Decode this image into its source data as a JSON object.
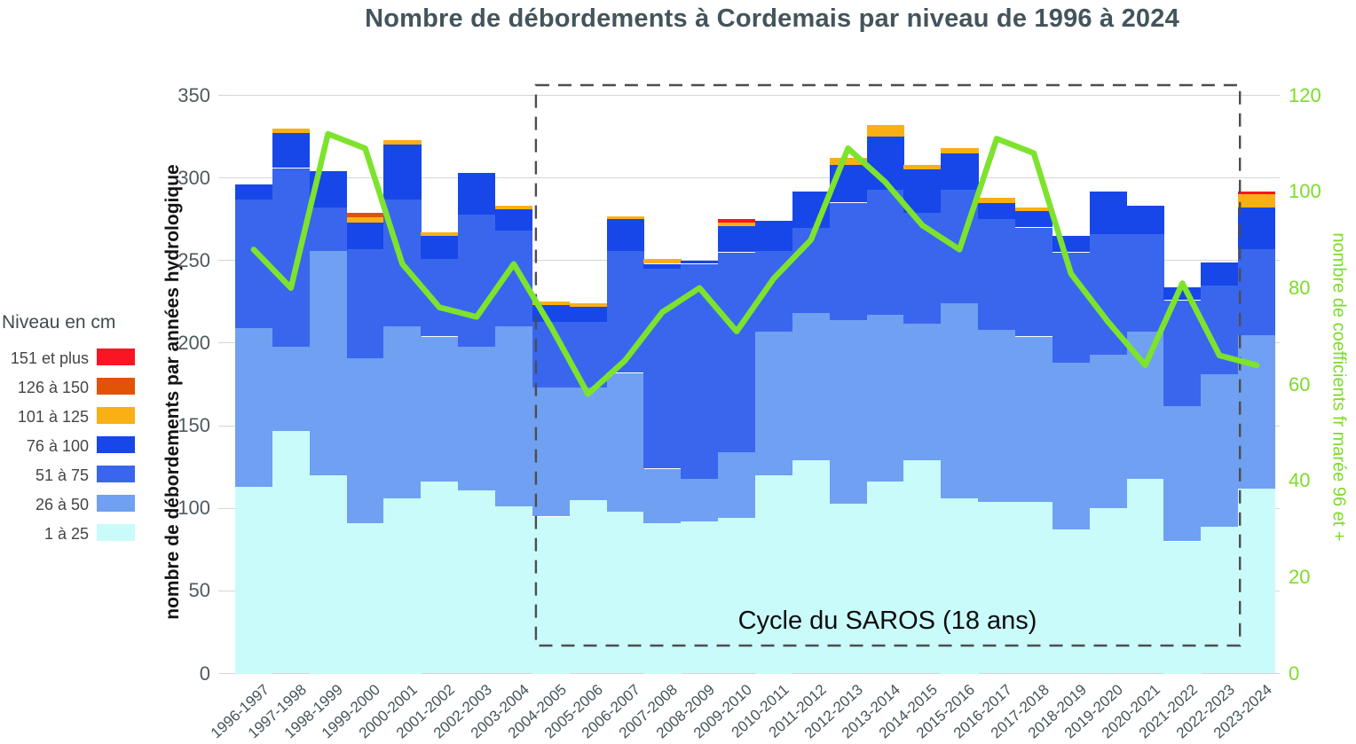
{
  "title": "Nombre de débordements à Cordemais par niveau de 1996 à 2024",
  "legend": {
    "title": "Niveau en cm",
    "items": [
      {
        "label": "151 et plus",
        "color": "#f91522"
      },
      {
        "label": "126 à 150",
        "color": "#e25308"
      },
      {
        "label": "101 à 125",
        "color": "#f9b015"
      },
      {
        "label": "76 à 100",
        "color": "#1747e8"
      },
      {
        "label": "51 à 75",
        "color": "#3a66ed"
      },
      {
        "label": "26 à 50",
        "color": "#6fa0f2"
      },
      {
        "label": "1 à 25",
        "color": "#c9fbfa"
      }
    ]
  },
  "axes": {
    "left": {
      "title": "nombre de débordements par années hydrologique",
      "ticks": [
        0,
        50,
        100,
        150,
        200,
        250,
        300,
        350
      ],
      "max": 350
    },
    "right": {
      "title": "nombre de coefficients fr marée  96 et +",
      "ticks": [
        0,
        20,
        40,
        60,
        80,
        100,
        120
      ],
      "max": 120
    }
  },
  "annotation": {
    "label": "Cycle du SAROS (18 ans)",
    "start_year": "2004-2005",
    "end_year": "2022-2023"
  },
  "chart_data": {
    "type": "bar",
    "stacked": true,
    "grid": true,
    "legend_position": "left",
    "ylim_left": [
      0,
      350
    ],
    "ylim_right": [
      0,
      120
    ],
    "categories": [
      "1996-1997",
      "1997-1998",
      "1998-1999",
      "1999-2000",
      "2000-2001",
      "2001-2002",
      "2002-2003",
      "2003-2004",
      "2004-2005",
      "2005-2006",
      "2006-2007",
      "2007-2008",
      "2008-2009",
      "2009-2010",
      "2010-2011",
      "2011-2012",
      "2012-2013",
      "2013-2014",
      "2014-2015",
      "2015-2016",
      "2016-2017",
      "2017-2018",
      "2018-2019",
      "2019-2020",
      "2020-2021",
      "2021-2022",
      "2022-2023",
      "2023-2024"
    ],
    "series": [
      {
        "name": "1 à 25",
        "color": "#c9fbfa",
        "values": [
          113,
          147,
          120,
          91,
          106,
          116,
          111,
          101,
          95,
          105,
          98,
          91,
          92,
          94,
          120,
          129,
          103,
          116,
          129,
          106,
          104,
          104,
          87,
          100,
          118,
          80,
          89,
          112
        ]
      },
      {
        "name": "26 à 50",
        "color": "#6fa0f2",
        "values": [
          96,
          51,
          136,
          100,
          104,
          88,
          87,
          109,
          78,
          68,
          84,
          33,
          26,
          40,
          87,
          89,
          111,
          101,
          83,
          118,
          104,
          100,
          101,
          93,
          89,
          82,
          92,
          93
        ]
      },
      {
        "name": "51 à 75",
        "color": "#3a66ed",
        "values": [
          78,
          108,
          26,
          66,
          77,
          47,
          80,
          58,
          40,
          40,
          74,
          121,
          130,
          121,
          49,
          52,
          71,
          76,
          67,
          69,
          67,
          66,
          67,
          73,
          59,
          64,
          54,
          52
        ]
      },
      {
        "name": "76 à 100",
        "color": "#1747e8",
        "values": [
          9,
          21,
          22,
          16,
          33,
          14,
          25,
          13,
          10,
          9,
          19,
          3,
          2,
          16,
          18,
          22,
          23,
          32,
          26,
          22,
          10,
          10,
          10,
          26,
          17,
          8,
          14,
          25
        ]
      },
      {
        "name": "101 à 125",
        "color": "#f9b015",
        "values": [
          0,
          3,
          0,
          3,
          3,
          2,
          0,
          2,
          2,
          2,
          2,
          3,
          0,
          2,
          0,
          0,
          4,
          7,
          3,
          3,
          3,
          2,
          0,
          0,
          0,
          0,
          0,
          8
        ]
      },
      {
        "name": "126 à 150",
        "color": "#e25308",
        "values": [
          0,
          0,
          0,
          3,
          0,
          0,
          0,
          0,
          0,
          0,
          0,
          0,
          0,
          0,
          0,
          0,
          0,
          0,
          0,
          0,
          0,
          0,
          0,
          0,
          0,
          0,
          0,
          0
        ]
      },
      {
        "name": "151 et plus",
        "color": "#f91522",
        "values": [
          0,
          0,
          0,
          0,
          0,
          0,
          0,
          0,
          0,
          0,
          0,
          0,
          0,
          2,
          0,
          0,
          0,
          0,
          0,
          0,
          0,
          0,
          0,
          0,
          0,
          0,
          0,
          2
        ]
      }
    ],
    "line_series": {
      "name": "nombre de coefficients fr marée 96 et +",
      "axis": "right",
      "color": "#7de32c",
      "values": [
        88,
        80,
        112,
        109,
        85,
        76,
        74,
        85,
        72,
        58,
        65,
        75,
        80,
        71,
        82,
        90,
        109,
        102,
        93,
        88,
        111,
        108,
        83,
        73,
        64,
        81,
        66,
        64
      ]
    }
  }
}
